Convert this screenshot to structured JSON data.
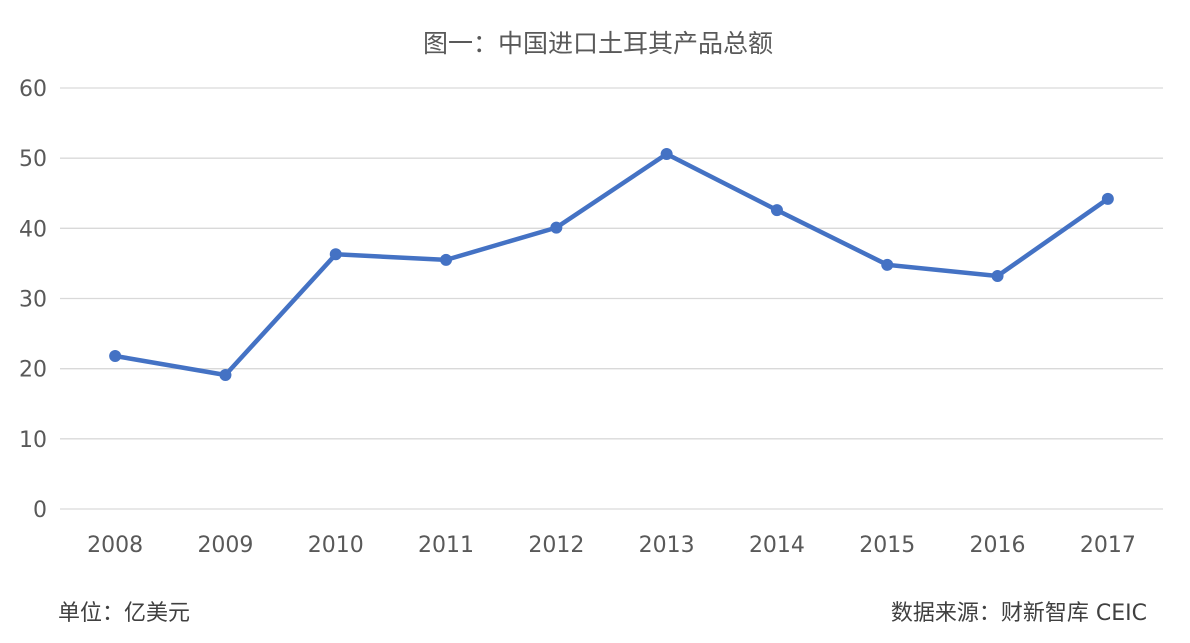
{
  "chart_data": {
    "type": "line",
    "title": "图一：中国进口土耳其产品总额",
    "categories": [
      "2008",
      "2009",
      "2010",
      "2011",
      "2012",
      "2013",
      "2014",
      "2015",
      "2016",
      "2017"
    ],
    "series": [
      {
        "values": [
          21.8,
          19.1,
          36.3,
          35.5,
          40.1,
          50.6,
          42.6,
          34.8,
          33.2,
          44.2
        ],
        "color": "#4472c4"
      }
    ],
    "ylim": [
      0,
      60
    ],
    "yticks": [
      0,
      10,
      20,
      30,
      40,
      50,
      60
    ],
    "grid": true,
    "legend": "none",
    "unit_note": "单位：亿美元",
    "source_note": "数据来源：财新智库 CEIC"
  }
}
